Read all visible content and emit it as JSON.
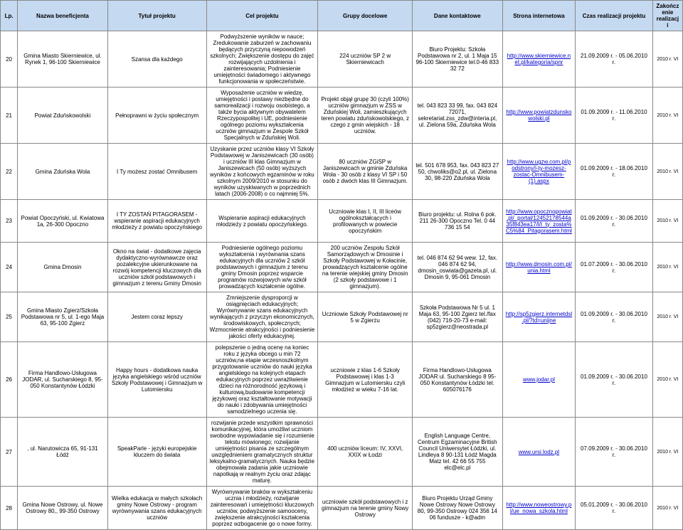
{
  "headers": {
    "lp": "Lp.",
    "benef": "Nazwa beneficjenta",
    "tytul": "Tytuł projektu",
    "cel": "Cel projektu",
    "grupy": "Grupy docelowe",
    "dane": "Dane kontaktowe",
    "strona": "Strona internetowa",
    "czas": "Czas realizacji projektu",
    "zak": "Zakończenie realizacji"
  },
  "rows": [
    {
      "lp": "20",
      "benef": "Gmina Miasto Skierniewice, ul. Rynek 1, 96-100 Skierniewice",
      "tytul": "Szansa dla każdego",
      "cel": "Podwyższenie wyników w nauce; Zredukowanie zaburzeń w zachowaniu będących przyczyną niepowodzeń szkolnych; Zwiększenie dostępu do zajęć rozwijających uzdolnienia i zainteresowania; Podniesienie umiejętności świadomego i aktywnego funkcjonowania w społeczeństwie.",
      "grupy": "224 uczniów SP 2 w Skierniewicach",
      "dane": "Biuro Projektu: Szkoła Podstawowa nr 2, ul. 1 Maja 15 96-100 Skierniewice tel.0-46 833 32 72",
      "strona": "http://www.skierniewice.net.pl/kategoria/spnr",
      "czas": "21.09.2009 r. - 05.06.2010 r.",
      "zak": "2010 r. VI"
    },
    {
      "lp": "21",
      "benef": "Powiat Zduńskowolski",
      "tytul": "Pełnoprawni w życiu społecznym",
      "cel": "Wyposażenie uczniów w wiedzę, umiejętności i postawy niezbędne do samorealizacji i rozwoju osobistego, a także bycia aktywnym obywatelem Rzeczypospolitej i UE, podniesienie ogólnego poziomu wykształcenia uczniów gimnazjum w Zespole Szkół Specjalnych w Zduńskiej Woli.",
      "grupy": "Projekt objął grupę 30 (czyli 100%) uczniów gimnazjum w ZSS w Zduńskiej Woli, zamieszkujących teren powiatu zduńskowolskiego, z czego z gmin wiejskich - 18 uczniów.",
      "dane": "tel. 043 823 33 99, fax. 043 824 72071, sekretariat.zss_zdw@interia.pl, ul. Zielona 59a, Zduńska Wola",
      "strona": "http://www.powiatzdunskowolski.pl",
      "czas": "01.09.2009 r. - 11.06.2010 r.",
      "zak": "2010 r. VI"
    },
    {
      "lp": "22",
      "benef": "Gmina Zduńska Wola",
      "tytul": "I Ty możesz zostać Omnibusem",
      "cel": "Uzyskanie przez uczniów klasy VI Szkoły Podstawowej w Janiszewicach (30 osób) i uczniów III klas Gimnazjum w Janiszewicach (50 osób) wyższych wyników z końcowych egzaminów w roku szkolnym 2009/2010 w stosunku do wyników uzyskiwanych w poprzednich latach (2006-2008) o co najmniej 5%.",
      "grupy": "80 uczniów ZGiSP w Janiszewicach w gminie Zduńska Wola - 30 osób z klasy VI SP i 50 osób z dwóch klas III Gimnazjum.",
      "dane": "tel. 501 678 953, fax. 043 823 27 50, chwoliks@o2.pl, ul. Zielona 30, 98-220 Zduńska Wola",
      "strona": "http://www.ugzw.com.pl/podstrony/i-ty-mozesz-zostac-Omnibusem-(1).aspx",
      "czas": "01.09.2009 r. - 18.06.2010 r.",
      "zak": "2010 r. VI"
    },
    {
      "lp": "23",
      "benef": "Powiat Opoczyński, ul. Kwiatowa 1a, 26-300 Opoczno",
      "tytul": "I TY ZOSTAŃ PITAGORASEM - wspieranie aspiracji edukacyjnych młodzieży z powiatu opoczyńskiego",
      "cel": "Wspieranie aspiracji edukacyjnych młodzieży z powiatu opoczyńskiego.",
      "grupy": "Uczniowie klas I, II, III liceów ogólnokształcących i profilowanych w powiecie opoczyńskim",
      "dane": "Biuro projektu: ul. Rolna 6 pok. 211 26-300 Opoczno Tel. 0 44 736 15 54",
      "strona": "http://www.opocznopowiat.pl/_portal/12452178544a35f843ea17/l/I_ty_zosta%C5%84_Pitagorasem.html",
      "czas": "01.09.2009 r. - 30.06.2010 r.",
      "zak": "2010 r. VI"
    },
    {
      "lp": "24",
      "benef": "Gmina Dmosin",
      "tytul": "Okno na świat - dodatkowe zajęcia dydaktyczno-wyrównawcze oraz pozalekcyjne ukierunkowane na rozwój kompetencji kluczowych dla uczniów szkół podstawowych i gimnazjum z terenu Gminy Dmosin",
      "cel": "Podniesienie ogólnego poziomu wykształcenia i wyrównania szans edukacyjnych dla uczniów 2 szkół podstawowych i gimnazjum z terenu gminy Dmosin poprzez wsparcie programów rozwojowych w/w szkół prowadzących kształcenie ogólne.",
      "grupy": "200 uczniów Zespołu Szkół Samorządowych w Dmosinie i Szkoły Podstawowej w Kołacinie, prowadzących kształcenie ogólne na terenie wiejskiej gminy Dmosin (2 szkoły podstawowe i 1 gimnazjum).",
      "dane": "tel. 046 874 62 94 wew. 12, fax. 046 874 62 94, dmosin_oswiata@gazeta.pl, ul. Dmosin 9, 95-061 Dmosin",
      "strona": "http://www.dmosin.com.pl/unia.html",
      "czas": "01.07.2009 r. - 30.06.2010 r.",
      "zak": "2010 r. VI"
    },
    {
      "lp": "25",
      "benef": "Gmina Miasto Zgierz/Szkoła Podstawowa nr 5, ul. 1-ego Maja 63, 95-100 Zgierz",
      "tytul": "Jestem coraz lepszy",
      "cel": "Zmniejszenie dysproporcji w osiągnięciach edukacyjnych; Wyrównywanie szans edukacyjnych wynikających z przyczyn ekonomicznych, środowiskowych, społecznych; Wzmocnienie atrakcyjności i podniesienie jakości oferty edukacyjnej.",
      "grupy": "Uczniowie Szkoły Podstawowej nr 5 w Zgierzu",
      "dane": "Szkoła Podstawowa Nr 5 ul. 1 Maja 63, 95-100 Zgierz tel./fax (042) 716-20-73 e-mail: sp5zgierz@neostrada.pl",
      "strona": "http://sp5zgierz.internetdsl.pl/?td=unijne",
      "czas": "01.09.2009 r. - 30.06.2010 r.",
      "zak": "2010 r. VI"
    },
    {
      "lp": "26",
      "benef": "Firma Handlowo-Usługowa JODAR, ul. Sucharskiego 8, 95-050 Konstantynów Łódzki",
      "tytul": "Happy hours - dodatkowa nauka języka angielskiego wśród uczniów Szkoły Podstawowej i Gimnazjum w Lutomiersku",
      "cel": "polepszenie o jedną ocenę na koniec roku z języka obcego u min 72 uczniów,na etapie wczesnoszkolnym przygotowanie uczniów do nauki języka angielskiego na kolejnych etapach edukacyjnych poprzez uwrażliwienie dzieci na różnorodność językową i kulturową,budowanie kompetencji językowej oraz kształtowanie motywacji do nauki i zdobywania umiejętności samodzielnego uczenia się.",
      "grupy": "uczniowie z klas 1-6 Szkoły Podstawowej i klas 1-3 Gimnazjum w Lutomiersku czyli młodzież w wieku 7-16 lat.",
      "dane": "Firma Handlowo-Usługowa JODAR ul. Sucharskiego 8 95-050 Konstantynów Łódzki tel. 605076176",
      "strona": "www.jodar.pl",
      "czas": "01.09.2009 r. - 30.06.2010 r.",
      "zak": "2010 r. VI"
    },
    {
      "lp": "27",
      "benef": ", ul. Narutowicza 65, 91-131 Łódź",
      "tytul": "SpeakParle - języki europejskie kluczem do świata",
      "cel": "rozwijanie przede wszystkim sprawności komunikacyjnej, która umożliwi uczniom swobodne wypowiadanie się i rozumienie tekstu mówionego; rozwijanie umiejętności pisania ze szczególnym uwzględnieniem gramatycznych struktur leksykalno-gramatycznych. Nauka będzie obejmowała zadania jakie uczniowie napotkają w realnym życiu oraz zdając maturę.",
      "grupy": "400 uczniów liceum: IV, XXVI, XXIX w Łodzi",
      "dane": "English Language Centre, Centrum Egzaminacyjne British Council Uniwersytet Łódzki, ul. Lindleya 8 90-131 Łódź Magda Matz tel. 42 66 55 755 elc@elc.pl",
      "strona": "www.ursi.lodz.pl",
      "czas": "07.09.2009 r. - 30.06.2010 r.",
      "zak": "2010 r. VI"
    },
    {
      "lp": "28",
      "benef": "Gmina Nowe Ostrowy, ul. Nowe Ostrowy 80,, 99-350 Ostrowy",
      "tytul": "Wielka edukacja w małych szkołach gminy Nowe Ostrowy - program wyrównywania szans edukacyjnych uczniów",
      "cel": "Wyrównywanie braków w wykształceniu ucznia i młodzieży, rozwijanie zainteresowań i umiejętności kluczowych uczniów, podwyższenie samooceny, zwiększenie atrakcyjności kształcenia poprzez wzbogacenie go o nowe formy.",
      "grupy": "uczniowie szkół podstawowych i z gimnazjum na terenie gminy Nowy Ostrowy",
      "dane": "Biuro Projektu Urząd Gminy Nowe Ostrowy Nowe Ostrowy 80, 99-350 Ostrowy 024 356 14 06 fundusze - k@adm",
      "strona": "http://www.noweostrowy.pl/ue_nowa_szkola.html",
      "czas": "05.01.2009 r. - 30.06.2010 r.",
      "zak": "2010 r. VI"
    }
  ]
}
